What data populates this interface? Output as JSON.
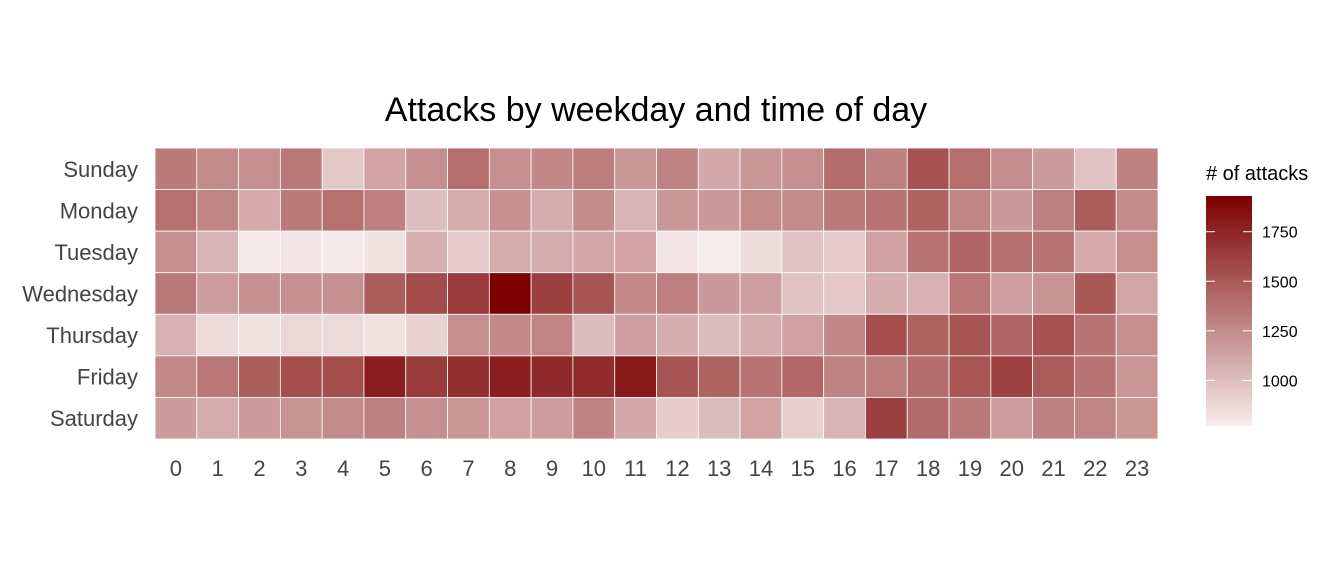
{
  "chart_data": {
    "type": "heatmap",
    "title": "Attacks by weekday and time of day",
    "xlabel": "",
    "ylabel": "",
    "x": [
      "0",
      "1",
      "2",
      "3",
      "4",
      "5",
      "6",
      "7",
      "8",
      "9",
      "10",
      "11",
      "12",
      "13",
      "14",
      "15",
      "16",
      "17",
      "18",
      "19",
      "20",
      "21",
      "22",
      "23"
    ],
    "y": [
      "Sunday",
      "Monday",
      "Tuesday",
      "Wednesday",
      "Thursday",
      "Friday",
      "Saturday"
    ],
    "values": [
      [
        1330,
        1250,
        1230,
        1340,
        950,
        1130,
        1230,
        1390,
        1230,
        1270,
        1320,
        1200,
        1290,
        1110,
        1190,
        1230,
        1400,
        1300,
        1530,
        1390,
        1240,
        1170,
        980,
        1300
      ],
      [
        1380,
        1280,
        1100,
        1330,
        1380,
        1310,
        1000,
        1090,
        1220,
        1090,
        1250,
        1050,
        1190,
        1180,
        1250,
        1250,
        1330,
        1360,
        1440,
        1280,
        1180,
        1300,
        1480,
        1250
      ],
      [
        1230,
        1050,
        790,
        810,
        790,
        820,
        1070,
        930,
        1090,
        1090,
        1110,
        1130,
        810,
        780,
        850,
        980,
        930,
        1140,
        1360,
        1430,
        1390,
        1360,
        1100,
        1230
      ],
      [
        1340,
        1160,
        1220,
        1220,
        1220,
        1480,
        1560,
        1650,
        1920,
        1620,
        1520,
        1260,
        1310,
        1180,
        1150,
        980,
        950,
        1080,
        1060,
        1350,
        1150,
        1210,
        1500,
        1120
      ],
      [
        1060,
        860,
        820,
        880,
        870,
        830,
        900,
        1230,
        1260,
        1280,
        1010,
        1150,
        1080,
        1010,
        1080,
        1140,
        1270,
        1550,
        1450,
        1520,
        1430,
        1530,
        1360,
        1230
      ],
      [
        1260,
        1350,
        1470,
        1550,
        1550,
        1790,
        1640,
        1700,
        1780,
        1730,
        1720,
        1810,
        1520,
        1440,
        1360,
        1420,
        1290,
        1320,
        1400,
        1510,
        1610,
        1490,
        1360,
        1200
      ],
      [
        1170,
        1090,
        1170,
        1210,
        1250,
        1300,
        1230,
        1200,
        1140,
        1160,
        1290,
        1110,
        930,
        1010,
        1130,
        910,
        1050,
        1620,
        1410,
        1340,
        1160,
        1300,
        1280,
        1200
      ]
    ],
    "zlim": [
      770,
      1930
    ],
    "color_low": "#f7eded",
    "color_high": "#7b0000",
    "legend": {
      "title": "# of attacks",
      "ticks": [
        1000,
        1250,
        1500,
        1750
      ],
      "position": "right"
    },
    "grid": false
  }
}
